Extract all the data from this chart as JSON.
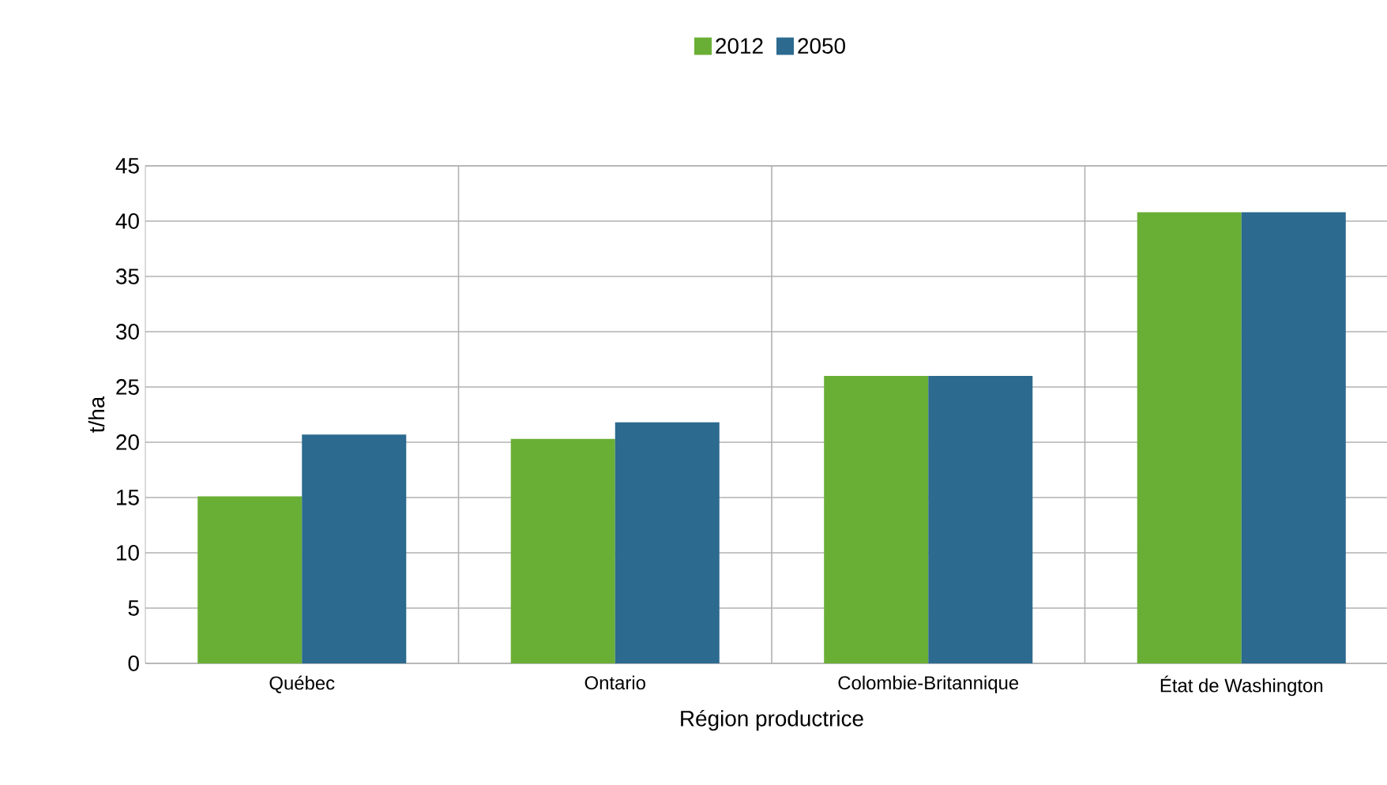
{
  "chart_data": {
    "type": "bar",
    "xlabel": "Région productrice",
    "ylabel": "t/ha",
    "categories": [
      "Québec",
      "Ontario",
      "Colombie-Britannique",
      "État de Washington"
    ],
    "series": [
      {
        "name": "2012",
        "color": "#6aaf35",
        "values": [
          15.1,
          20.3,
          26.0,
          40.8
        ]
      },
      {
        "name": "2050",
        "color": "#2c6a8f",
        "values": [
          20.7,
          21.8,
          26.0,
          40.8
        ]
      }
    ],
    "ylim": [
      0,
      45
    ],
    "yticks": [
      0,
      5,
      10,
      15,
      20,
      25,
      30,
      35,
      40,
      45
    ],
    "grid": true,
    "legend": "top"
  }
}
